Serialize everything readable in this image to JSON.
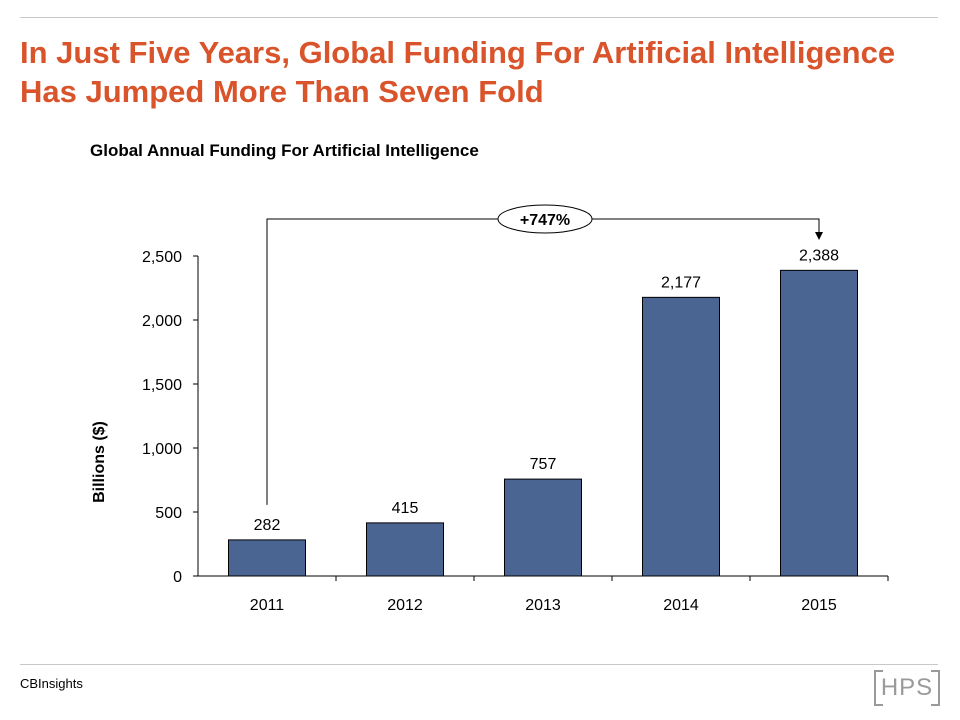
{
  "slide": {
    "title": "In Just Five Years, Global Funding For Artificial Intelligence Has Jumped More Than Seven Fold",
    "source": "CBInsights",
    "logo_text": "HPS"
  },
  "chart_data": {
    "type": "bar",
    "title": "Global Annual Funding For Artificial Intelligence",
    "ylabel": "Billions ($)",
    "xlabel": "",
    "categories": [
      "2011",
      "2012",
      "2013",
      "2014",
      "2015"
    ],
    "values": [
      282,
      415,
      757,
      2177,
      2388
    ],
    "value_labels": [
      "282",
      "415",
      "757",
      "2,177",
      "2,388"
    ],
    "ylim": [
      0,
      2500
    ],
    "yticks": [
      0,
      500,
      1000,
      1500,
      2000,
      2500
    ],
    "ytick_labels": [
      "0",
      "500",
      "1,000",
      "1,500",
      "2,000",
      "2,500"
    ],
    "bar_color": "#4a6592",
    "grid": false,
    "annotation": {
      "text": "+747%",
      "from": "2011",
      "to": "2015"
    }
  }
}
